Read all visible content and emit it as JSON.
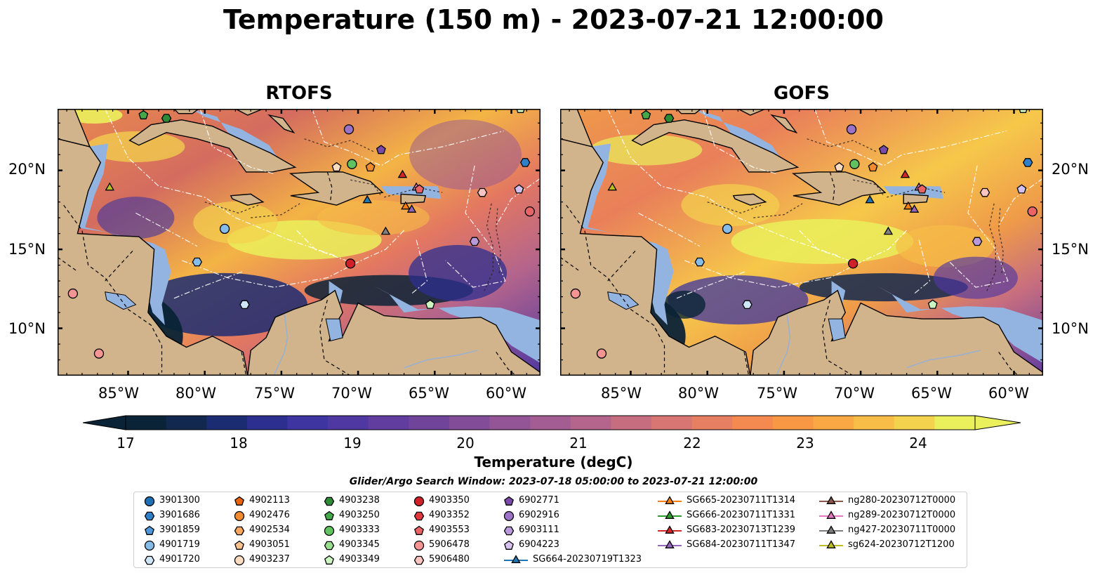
{
  "title": "Temperature (150 m) - 2023-07-21 12:00:00",
  "panels": [
    {
      "title": "RTOFS"
    },
    {
      "title": "GOFS"
    }
  ],
  "axes": {
    "lon_ticks": [
      "85°W",
      "80°W",
      "75°W",
      "70°W",
      "65°W",
      "60°W"
    ],
    "lat_ticks": [
      "20°N",
      "15°N",
      "10°N"
    ]
  },
  "colorbar": {
    "label": "Temperature (degC)",
    "ticks": [
      "17",
      "18",
      "19",
      "20",
      "21",
      "22",
      "23",
      "24"
    ],
    "range": [
      16.5,
      24.5
    ],
    "colors": [
      "#0a2336",
      "#13284f",
      "#1c2c72",
      "#2c2f8f",
      "#3e35a0",
      "#5038a2",
      "#613d9f",
      "#71449c",
      "#824c99",
      "#945596",
      "#a45d92",
      "#b5658b",
      "#c66d80",
      "#d77673",
      "#e77f62",
      "#f48a4f",
      "#f89845",
      "#f9a844",
      "#f7bd47",
      "#f3d24d",
      "#eaf05c"
    ]
  },
  "legend_title": "Glider/Argo Search Window: 2023-07-18 05:00:00 to 2023-07-21 12:00:00",
  "legend": [
    {
      "label": "3901300",
      "marker": "circle",
      "color": "#1f6fb4"
    },
    {
      "label": "3901686",
      "marker": "hexagon",
      "color": "#2f80c8"
    },
    {
      "label": "3901859",
      "marker": "pentagon",
      "color": "#4f97d8"
    },
    {
      "label": "4901719",
      "marker": "circle",
      "color": "#86bde8"
    },
    {
      "label": "4901720",
      "marker": "hexagon",
      "color": "#cfe6f8"
    },
    {
      "label": "4902113",
      "marker": "pentagon",
      "color": "#e8640e"
    },
    {
      "label": "4902476",
      "marker": "circle",
      "color": "#f28b30"
    },
    {
      "label": "4902534",
      "marker": "hexagon",
      "color": "#f6a65e"
    },
    {
      "label": "4903051",
      "marker": "pentagon",
      "color": "#f9c28e"
    },
    {
      "label": "4903237",
      "marker": "circle",
      "color": "#fddcc0"
    },
    {
      "label": "4903238",
      "marker": "hexagon",
      "color": "#2f8a36"
    },
    {
      "label": "4903250",
      "marker": "pentagon",
      "color": "#44a84a"
    },
    {
      "label": "4903333",
      "marker": "circle",
      "color": "#62c25f"
    },
    {
      "label": "4903345",
      "marker": "hexagon",
      "color": "#98dd8c"
    },
    {
      "label": "4903349",
      "marker": "pentagon",
      "color": "#ccf5c2"
    },
    {
      "label": "4903350",
      "marker": "circle",
      "color": "#cf2127"
    },
    {
      "label": "4903352",
      "marker": "hexagon",
      "color": "#e0393d"
    },
    {
      "label": "4903553",
      "marker": "pentagon",
      "color": "#ea6466"
    },
    {
      "label": "5906478",
      "marker": "circle",
      "color": "#f49593"
    },
    {
      "label": "5906480",
      "marker": "hexagon",
      "color": "#fbc4c1"
    },
    {
      "label": "6902771",
      "marker": "pentagon",
      "color": "#7a4aa8"
    },
    {
      "label": "6902916",
      "marker": "circle",
      "color": "#9b72c5"
    },
    {
      "label": "6903111",
      "marker": "hexagon",
      "color": "#b89adb"
    },
    {
      "label": "6904223",
      "marker": "pentagon",
      "color": "#d5c1ee"
    },
    {
      "label": "SG664-20230719T1323",
      "marker": "triangle-line",
      "color": "#1f77b4"
    },
    {
      "label": "SG665-20230711T1314",
      "marker": "triangle-line",
      "color": "#ff7f0e"
    },
    {
      "label": "SG666-20230711T1331",
      "marker": "triangle-line",
      "color": "#2ca02c"
    },
    {
      "label": "SG683-20230713T1239",
      "marker": "triangle-line",
      "color": "#d62728"
    },
    {
      "label": "SG684-20230711T1347",
      "marker": "triangle-line",
      "color": "#9467bd"
    },
    {
      "label": "ng280-20230712T0000",
      "marker": "triangle-line",
      "color": "#8c564b"
    },
    {
      "label": "ng289-20230712T0000",
      "marker": "triangle-line",
      "color": "#e377c2"
    },
    {
      "label": "ng427-20230711T0000",
      "marker": "triangle-line",
      "color": "#7f7f7f"
    },
    {
      "label": "sg624-20230712T1200",
      "marker": "triangle-line",
      "color": "#bcbd22"
    }
  ],
  "observations": [
    {
      "lon": -84.0,
      "lat": 23.5,
      "marker": "pentagon",
      "color": "#44a84a"
    },
    {
      "lon": -82.5,
      "lat": 23.3,
      "marker": "hexagon",
      "color": "#2f8a36"
    },
    {
      "lon": -59.4,
      "lat": 23.9,
      "marker": "pentagon",
      "color": "#ccf5c2"
    },
    {
      "lon": -86.2,
      "lat": 18.9,
      "marker": "triangle",
      "color": "#bcbd22"
    },
    {
      "lon": -78.7,
      "lat": 16.3,
      "marker": "circle",
      "color": "#86bde8"
    },
    {
      "lon": -80.5,
      "lat": 14.2,
      "marker": "hexagon",
      "color": "#86bde8"
    },
    {
      "lon": -77.4,
      "lat": 11.5,
      "marker": "hexagon",
      "color": "#cfe6f8"
    },
    {
      "lon": -88.6,
      "lat": 12.2,
      "marker": "circle",
      "color": "#f49593"
    },
    {
      "lon": -86.9,
      "lat": 8.4,
      "marker": "circle",
      "color": "#f49593"
    },
    {
      "lon": -70.6,
      "lat": 22.6,
      "marker": "circle",
      "color": "#9b72c5"
    },
    {
      "lon": -68.5,
      "lat": 21.3,
      "marker": "pentagon",
      "color": "#7a4aa8"
    },
    {
      "lon": -71.4,
      "lat": 20.2,
      "marker": "pentagon",
      "color": "#fddcc0"
    },
    {
      "lon": -70.4,
      "lat": 20.4,
      "marker": "circle",
      "color": "#62c25f"
    },
    {
      "lon": -69.2,
      "lat": 20.2,
      "marker": "pentagon",
      "color": "#f28b30"
    },
    {
      "lon": -67.1,
      "lat": 19.7,
      "marker": "triangle",
      "color": "#d62728"
    },
    {
      "lon": -69.4,
      "lat": 18.1,
      "marker": "triangle",
      "color": "#1f77b4"
    },
    {
      "lon": -66.2,
      "lat": 18.9,
      "marker": "triangle",
      "color": "#e377c2"
    },
    {
      "lon": -66.0,
      "lat": 18.8,
      "marker": "pentagon",
      "color": "#ea6466"
    },
    {
      "lon": -66.9,
      "lat": 17.7,
      "marker": "triangle",
      "color": "#ff7f0e"
    },
    {
      "lon": -66.5,
      "lat": 17.5,
      "marker": "triangle",
      "color": "#9467bd"
    },
    {
      "lon": -68.2,
      "lat": 16.1,
      "marker": "triangle",
      "color": "#7f7f7f"
    },
    {
      "lon": -61.9,
      "lat": 18.6,
      "marker": "hexagon",
      "color": "#fbc4c1"
    },
    {
      "lon": -59.5,
      "lat": 18.8,
      "marker": "pentagon",
      "color": "#d5c1ee"
    },
    {
      "lon": -58.8,
      "lat": 17.4,
      "marker": "circle",
      "color": "#ea6466"
    },
    {
      "lon": -59.1,
      "lat": 20.5,
      "marker": "hexagon",
      "color": "#2f80c8"
    },
    {
      "lon": -62.4,
      "lat": 15.5,
      "marker": "hexagon",
      "color": "#b89adb"
    },
    {
      "lon": -70.5,
      "lat": 14.1,
      "marker": "circle",
      "color": "#cf2127"
    },
    {
      "lon": -65.3,
      "lat": 11.5,
      "marker": "pentagon",
      "color": "#ccf5c2"
    }
  ]
}
